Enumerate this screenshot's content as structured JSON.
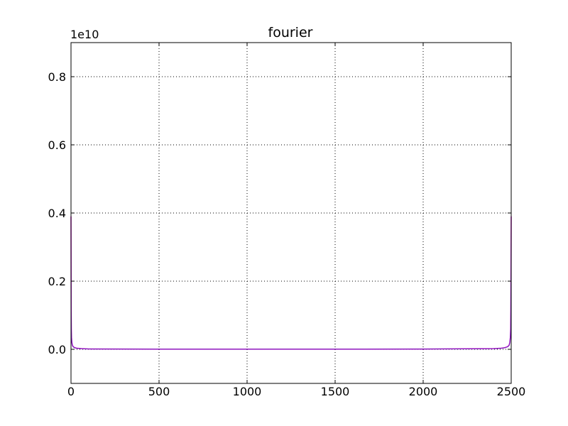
{
  "chart_data": {
    "type": "line",
    "title": "fourier",
    "xlabel": "",
    "ylabel": "",
    "y_offset_label": "1e10",
    "xlim": [
      0,
      2500
    ],
    "ylim": [
      -0.1,
      0.9
    ],
    "grid": true,
    "x_ticks": [
      0,
      500,
      1000,
      1500,
      2000,
      2500
    ],
    "x_tick_labels": [
      "0",
      "500",
      "1000",
      "1500",
      "2000",
      "2500"
    ],
    "y_ticks": [
      0.0,
      0.2,
      0.4,
      0.6,
      0.8
    ],
    "y_tick_labels": [
      "0.0",
      "0.2",
      "0.4",
      "0.6",
      "0.8"
    ],
    "series": [
      {
        "color": "#cc00cc",
        "x": [
          0,
          1,
          2,
          3,
          5,
          8,
          12,
          20,
          35,
          60,
          100,
          500,
          1000,
          1500,
          2000,
          2400,
          2440,
          2465,
          2480,
          2488,
          2492,
          2495,
          2497,
          2498,
          2499,
          2500
        ],
        "y": [
          0.39,
          0.12,
          0.06,
          0.035,
          0.02,
          0.012,
          0.008,
          0.005,
          0.003,
          0.002,
          0.001,
          0.0005,
          0.0004,
          0.0005,
          0.0008,
          0.002,
          0.003,
          0.005,
          0.008,
          0.012,
          0.02,
          0.035,
          0.06,
          0.12,
          0.25,
          0.39
        ]
      }
    ]
  }
}
